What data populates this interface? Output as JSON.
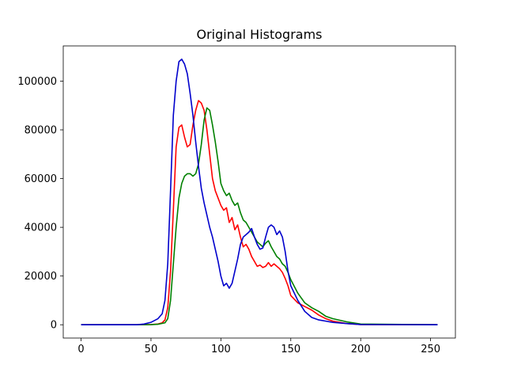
{
  "chart_data": {
    "type": "line",
    "title": "Original Histograms",
    "xlabel": "",
    "ylabel": "",
    "xlim": [
      -12.75,
      267.75
    ],
    "ylim": [
      -5450,
      114450
    ],
    "xticks": [
      0,
      50,
      100,
      150,
      200,
      250
    ],
    "yticks": [
      0,
      20000,
      40000,
      60000,
      80000,
      100000
    ],
    "grid": false,
    "series": [
      {
        "color": "#ff0000",
        "x": [
          0,
          40,
          50,
          55,
          58,
          60,
          62,
          64,
          66,
          68,
          70,
          72,
          74,
          76,
          78,
          80,
          82,
          84,
          86,
          88,
          90,
          92,
          94,
          96,
          98,
          100,
          102,
          104,
          106,
          108,
          110,
          112,
          114,
          116,
          118,
          120,
          122,
          124,
          126,
          128,
          130,
          132,
          134,
          136,
          138,
          140,
          142,
          144,
          146,
          148,
          150,
          155,
          160,
          165,
          170,
          175,
          180,
          190,
          200,
          255
        ],
        "y": [
          0,
          0,
          100,
          300,
          800,
          2000,
          7000,
          22000,
          47000,
          73000,
          81000,
          82000,
          77000,
          73000,
          74000,
          82000,
          88000,
          92000,
          91000,
          88000,
          80000,
          70000,
          60000,
          55000,
          52000,
          49000,
          47000,
          48000,
          42000,
          44000,
          39000,
          41000,
          36000,
          32000,
          33000,
          31000,
          28000,
          26000,
          24000,
          24500,
          23500,
          24000,
          25500,
          24000,
          25000,
          24000,
          23000,
          21500,
          19000,
          16000,
          12000,
          9000,
          7500,
          6000,
          4000,
          2500,
          1500,
          500,
          100,
          0
        ]
      },
      {
        "color": "#008000",
        "x": [
          0,
          40,
          50,
          55,
          60,
          62,
          64,
          66,
          68,
          70,
          72,
          74,
          76,
          78,
          80,
          82,
          84,
          86,
          88,
          90,
          92,
          94,
          96,
          98,
          100,
          102,
          104,
          106,
          108,
          110,
          112,
          114,
          116,
          118,
          120,
          122,
          124,
          126,
          128,
          130,
          132,
          134,
          136,
          138,
          140,
          142,
          144,
          146,
          148,
          150,
          155,
          160,
          165,
          170,
          175,
          180,
          190,
          200,
          255
        ],
        "y": [
          0,
          0,
          50,
          200,
          800,
          2500,
          10000,
          25000,
          40000,
          52000,
          58000,
          61000,
          62000,
          62000,
          61000,
          62000,
          66000,
          74000,
          84000,
          89000,
          88000,
          82000,
          75000,
          67000,
          58000,
          55000,
          53000,
          54000,
          51000,
          49000,
          50000,
          46000,
          43000,
          42000,
          40000,
          38000,
          36000,
          34000,
          33000,
          32000,
          33500,
          34500,
          32000,
          30000,
          28000,
          27000,
          25000,
          24000,
          21500,
          18500,
          13000,
          9000,
          7000,
          5500,
          3500,
          2500,
          1200,
          300,
          0
        ]
      },
      {
        "color": "#0000cc",
        "x": [
          0,
          40,
          45,
          50,
          55,
          58,
          60,
          62,
          64,
          66,
          68,
          70,
          72,
          74,
          76,
          78,
          80,
          82,
          84,
          86,
          88,
          90,
          92,
          94,
          96,
          98,
          100,
          102,
          104,
          106,
          108,
          110,
          112,
          114,
          116,
          118,
          120,
          122,
          124,
          126,
          128,
          130,
          132,
          134,
          136,
          138,
          140,
          142,
          144,
          146,
          148,
          150,
          155,
          160,
          165,
          170,
          175,
          180,
          190,
          200,
          255
        ],
        "y": [
          0,
          0,
          300,
          1000,
          2500,
          4500,
          10000,
          25000,
          55000,
          86000,
          100000,
          108000,
          109000,
          107000,
          103000,
          95000,
          86000,
          75000,
          65000,
          56000,
          50000,
          45000,
          40000,
          36000,
          31000,
          26000,
          20000,
          16000,
          17000,
          15000,
          17000,
          22000,
          27000,
          33000,
          36000,
          37000,
          38000,
          39500,
          36000,
          33000,
          31000,
          31500,
          36000,
          40000,
          41000,
          40000,
          37000,
          38500,
          36000,
          30000,
          22000,
          16000,
          10000,
          5500,
          3000,
          2000,
          1500,
          1000,
          500,
          100,
          0
        ]
      }
    ]
  }
}
